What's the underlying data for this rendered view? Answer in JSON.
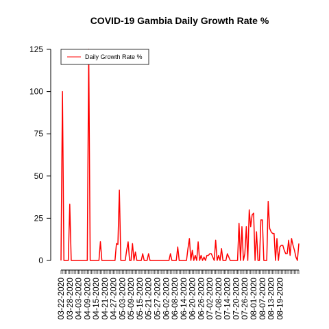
{
  "chart_data": {
    "type": "line",
    "title": "COVID-19 Gambia Daily Growth Rate %",
    "xlabel": "",
    "ylabel": "",
    "ylim": [
      0,
      125
    ],
    "yticks": [
      0,
      25,
      50,
      75,
      100,
      125
    ],
    "grid": false,
    "legend": {
      "position": "top-left",
      "entries": [
        "Daily Growth Rate %"
      ]
    },
    "x_tick_labels": [
      "03-22-2020",
      "03-28-2020",
      "04-03-2020",
      "04-09-2020",
      "04-15-2020",
      "04-21-2020",
      "04-27-2020",
      "05-03-2020",
      "05-09-2020",
      "05-15-2020",
      "05-21-2020",
      "05-27-2020",
      "06-02-2020",
      "06-08-2020",
      "06-14-2020",
      "06-20-2020",
      "06-26-2020",
      "07-02-2020",
      "07-08-2020",
      "07-14-2020",
      "07-20-2020",
      "07-26-2020",
      "08-01-2020",
      "08-07-2020",
      "08-13-2020",
      "08-19-2020"
    ],
    "series": [
      {
        "name": "Daily Growth Rate %",
        "color": "#ff0000",
        "values": [
          0,
          100,
          0,
          0,
          0,
          0,
          33.3,
          0,
          0,
          0,
          0,
          0,
          0,
          0,
          0,
          0,
          0,
          0,
          0,
          125,
          0,
          0,
          0,
          0,
          0,
          0,
          0,
          11.1,
          0,
          0,
          0,
          0,
          0,
          0,
          0,
          0,
          0,
          0,
          10,
          9.5,
          41.7,
          0,
          0,
          0,
          0,
          6,
          11,
          0,
          0,
          10,
          0,
          5,
          0,
          0,
          0,
          0,
          4,
          0,
          0,
          0,
          4,
          0,
          0,
          0,
          0,
          0,
          0,
          0,
          0,
          0,
          0,
          0,
          0,
          0,
          0,
          4,
          0,
          0,
          0,
          0,
          8,
          0,
          0,
          0,
          0,
          0,
          0,
          7,
          13,
          0,
          6,
          0,
          3,
          0,
          11,
          0,
          3,
          0,
          2,
          0,
          3,
          3,
          4,
          4,
          2,
          0,
          12,
          0,
          3,
          0,
          7,
          0,
          0,
          0,
          4,
          2,
          0,
          0,
          0,
          0,
          0,
          0,
          22,
          0,
          20,
          0,
          4,
          20,
          0,
          30,
          20,
          27,
          28,
          0,
          17,
          0,
          0,
          24,
          24,
          0,
          0,
          0,
          35,
          19,
          17,
          16,
          16,
          0,
          13,
          0,
          8,
          9,
          9,
          6,
          4,
          4,
          12,
          3,
          13,
          9,
          6,
          2,
          0,
          10
        ]
      }
    ]
  }
}
